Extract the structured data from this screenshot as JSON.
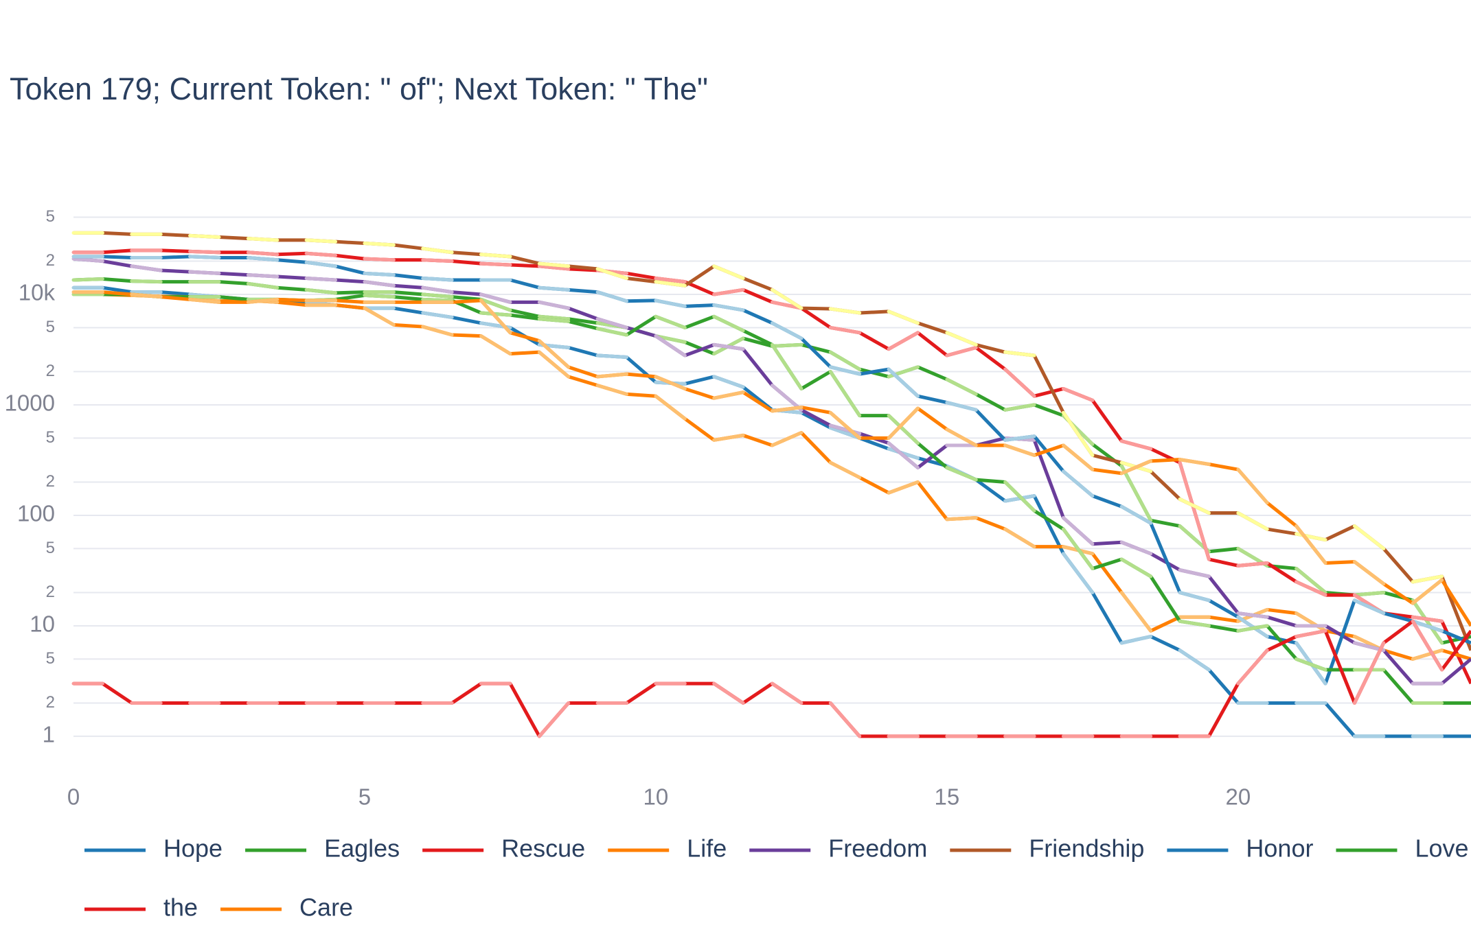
{
  "chart_data": {
    "type": "line",
    "title": "Token 179; Current Token: \" of\"; Next Token: \" The\"",
    "x": [
      0,
      0.5,
      1,
      1.5,
      2,
      2.5,
      3,
      3.5,
      4,
      4.5,
      5,
      5.5,
      6,
      6.5,
      7,
      7.5,
      8,
      8.5,
      9,
      9.5,
      10,
      10.5,
      11,
      11.5,
      12,
      12.5,
      13,
      13.5,
      14,
      14.5,
      15,
      15.5,
      16,
      16.5,
      17,
      17.5,
      18,
      18.5,
      19,
      19.5,
      20,
      20.5,
      21,
      21.5,
      22,
      22.5,
      23,
      23.5,
      24
    ],
    "xlim": [
      0,
      24
    ],
    "xticks": [
      0,
      5,
      10,
      15,
      20
    ],
    "ylim": [
      0.4,
      100000
    ],
    "log_y": true,
    "grid": true,
    "yticks": [
      1,
      2,
      5,
      10,
      {
        "value": 20,
        "label": "2"
      },
      {
        "value": 50,
        "label": "5"
      },
      100,
      {
        "value": 200,
        "label": "2"
      },
      {
        "value": 500,
        "label": "5"
      },
      1000,
      {
        "value": 2000,
        "label": "2"
      },
      {
        "value": 5000,
        "label": "5"
      },
      {
        "value": 10000,
        "label": "10k"
      },
      {
        "value": 20000,
        "label": "2"
      },
      {
        "value": 50000,
        "label": "5"
      }
    ],
    "series": [
      {
        "name": "Hope",
        "color": "#1f78b4",
        "alt_color": "#a6cee3",
        "values": [
          11500,
          11500,
          10500,
          10500,
          10000,
          9500,
          9000,
          8500,
          8500,
          8000,
          7500,
          7500,
          6800,
          6200,
          5500,
          5000,
          3500,
          3300,
          2800,
          2700,
          1600,
          1550,
          1800,
          1450,
          900,
          850,
          620,
          500,
          400,
          330,
          280,
          210,
          135,
          150,
          45,
          20,
          7,
          8,
          6,
          4,
          2,
          2,
          2,
          2,
          1,
          1,
          1,
          1,
          1
        ]
      },
      {
        "name": "Eagles",
        "color": "#33a02c",
        "alt_color": "#b2df8a",
        "values": [
          13500,
          13800,
          13200,
          13000,
          13000,
          13000,
          12500,
          11500,
          11000,
          10300,
          10500,
          10500,
          10000,
          9500,
          9000,
          7200,
          6300,
          6000,
          5500,
          5000,
          4200,
          3700,
          2900,
          4000,
          3400,
          3500,
          3000,
          2100,
          1800,
          2200,
          1700,
          1250,
          900,
          1000,
          800,
          440,
          280,
          90,
          80,
          47,
          50,
          35,
          33,
          20,
          19,
          20,
          17,
          7,
          8
        ]
      },
      {
        "name": "Rescue",
        "color": "#e31a1c",
        "alt_color": "#fb9a99",
        "values": [
          24000,
          24000,
          25000,
          25000,
          24500,
          24000,
          24000,
          23000,
          23500,
          22500,
          21000,
          20500,
          20500,
          20000,
          19000,
          18500,
          18000,
          17000,
          16500,
          15500,
          14000,
          13000,
          10000,
          11000,
          8500,
          7500,
          5000,
          4500,
          3200,
          4500,
          2800,
          3300,
          2100,
          1200,
          1400,
          1100,
          470,
          400,
          300,
          40,
          35,
          37,
          25,
          19,
          19,
          13,
          12,
          11,
          3
        ]
      },
      {
        "name": "Life",
        "color": "#ff7f00",
        "alt_color": "#fdbf6f",
        "values": [
          10000,
          10000,
          9800,
          9600,
          9500,
          8700,
          8800,
          8500,
          8000,
          8000,
          7500,
          5300,
          5100,
          4300,
          4200,
          2900,
          3000,
          1800,
          1500,
          1250,
          1200,
          750,
          480,
          530,
          430,
          560,
          300,
          220,
          160,
          200,
          92,
          95,
          75,
          52,
          52,
          45,
          20,
          9,
          12,
          12,
          11,
          14,
          13,
          9,
          8,
          6,
          5,
          6,
          5
        ]
      },
      {
        "name": "Freedom",
        "color": "#6a3d9a",
        "alt_color": "#cab2d6",
        "values": [
          21000,
          20000,
          18000,
          16500,
          16000,
          15500,
          15000,
          14500,
          14000,
          13500,
          13000,
          12000,
          11500,
          10500,
          10000,
          8500,
          8500,
          7500,
          6000,
          5000,
          4200,
          2800,
          3500,
          3200,
          1500,
          900,
          650,
          550,
          450,
          270,
          430,
          430,
          500,
          480,
          95,
          55,
          57,
          45,
          32,
          28,
          13,
          12,
          10,
          10,
          7,
          6,
          3,
          3,
          5
        ]
      },
      {
        "name": "Friendship",
        "color": "#b15928",
        "alt_color": "#ffff99",
        "values": [
          36000,
          36000,
          35000,
          35000,
          34000,
          33000,
          32000,
          31000,
          31000,
          30000,
          29000,
          28000,
          26000,
          24000,
          23000,
          22000,
          19000,
          18000,
          17000,
          14000,
          13000,
          12000,
          18000,
          14000,
          11000,
          7500,
          7400,
          6800,
          7000,
          5500,
          4500,
          3500,
          3000,
          2800,
          850,
          350,
          300,
          250,
          140,
          105,
          105,
          75,
          68,
          60,
          80,
          50,
          25,
          28,
          6
        ]
      },
      {
        "name": "Honor",
        "color": "#1f78b4",
        "alt_color": "#a6cee3",
        "values": [
          22000,
          22000,
          21500,
          21500,
          22000,
          21500,
          21500,
          20500,
          19500,
          18000,
          15500,
          15000,
          14000,
          13500,
          13500,
          13500,
          11500,
          11000,
          10500,
          8700,
          8800,
          7800,
          8000,
          7200,
          5500,
          4000,
          2200,
          1900,
          2100,
          1200,
          1050,
          900,
          480,
          520,
          250,
          150,
          120,
          85,
          20,
          17,
          12,
          8,
          7,
          3,
          17,
          13,
          11,
          9,
          7
        ]
      },
      {
        "name": "Love",
        "color": "#33a02c",
        "alt_color": "#b2df8a",
        "values": [
          10000,
          10000,
          10000,
          9500,
          9500,
          9500,
          9000,
          9000,
          8800,
          9000,
          9800,
          9500,
          9000,
          8800,
          6800,
          6500,
          6000,
          5700,
          4900,
          4300,
          6300,
          5000,
          6300,
          4700,
          3500,
          1400,
          2000,
          800,
          800,
          450,
          270,
          210,
          200,
          110,
          75,
          33,
          40,
          28,
          11,
          10,
          9,
          10,
          5,
          4,
          4,
          4,
          2,
          2,
          2
        ]
      },
      {
        "name": "the",
        "color": "#e31a1c",
        "alt_color": "#fb9a99",
        "values": [
          3,
          3,
          2,
          2,
          2,
          2,
          2,
          2,
          2,
          2,
          2,
          2,
          2,
          2,
          3,
          3,
          1,
          2,
          2,
          2,
          3,
          3,
          3,
          2,
          3,
          2,
          2,
          1,
          1,
          1,
          1,
          1,
          1,
          1,
          1,
          1,
          1,
          1,
          1,
          1,
          3,
          6,
          8,
          9,
          2,
          7,
          11,
          4,
          9
        ]
      },
      {
        "name": "Care",
        "color": "#ff7f00",
        "alt_color": "#fdbf6f",
        "values": [
          10500,
          10500,
          10000,
          9500,
          9000,
          8500,
          8500,
          9000,
          8800,
          8800,
          8500,
          8500,
          8500,
          8500,
          8800,
          4500,
          3800,
          2200,
          1800,
          1900,
          1800,
          1400,
          1150,
          1300,
          880,
          950,
          850,
          500,
          500,
          930,
          600,
          430,
          430,
          350,
          430,
          260,
          240,
          310,
          320,
          290,
          260,
          130,
          80,
          37,
          38,
          24,
          16,
          26,
          10
        ]
      }
    ]
  }
}
